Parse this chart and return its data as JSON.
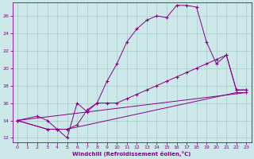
{
  "xlabel": "Windchill (Refroidissement éolien,°C)",
  "bg_color": "#cce8e8",
  "line_color": "#880088",
  "grid_color": "#aacccc",
  "xlim": [
    -0.5,
    23.5
  ],
  "ylim": [
    11.5,
    27.5
  ],
  "xticks": [
    0,
    1,
    2,
    3,
    4,
    5,
    6,
    7,
    8,
    9,
    10,
    11,
    12,
    13,
    14,
    15,
    16,
    17,
    18,
    19,
    20,
    21,
    22,
    23
  ],
  "yticks": [
    12,
    14,
    16,
    18,
    20,
    22,
    24,
    26
  ],
  "line1_x": [
    0,
    2,
    3,
    4,
    5,
    6,
    7,
    8,
    9,
    10,
    11,
    12,
    13,
    14,
    15,
    16,
    17,
    18,
    19,
    20,
    21,
    22,
    23
  ],
  "line1_y": [
    14,
    14.5,
    14,
    13,
    12,
    16,
    15,
    16,
    18.5,
    20.5,
    23,
    24.5,
    25.5,
    26,
    25.8,
    27.2,
    27.2,
    27,
    23,
    20.5,
    21.5,
    17.5,
    17.5
  ],
  "line2_x": [
    0,
    3,
    4,
    5,
    6,
    7,
    8,
    9,
    10,
    11,
    12,
    13,
    14,
    15,
    16,
    17,
    18,
    19,
    20,
    21,
    22,
    23
  ],
  "line2_y": [
    14,
    13,
    13,
    13,
    13.5,
    15.2,
    16,
    16,
    16,
    16.5,
    17,
    17.5,
    18,
    18.5,
    19,
    19.5,
    20,
    20.5,
    21,
    21.5,
    17.5,
    17.5
  ],
  "line3_x": [
    0,
    3,
    4,
    5,
    22,
    23
  ],
  "line3_y": [
    14,
    13,
    13,
    13,
    17.2,
    17.2
  ],
  "line4_x": [
    0,
    23
  ],
  "line4_y": [
    14,
    17.2
  ]
}
